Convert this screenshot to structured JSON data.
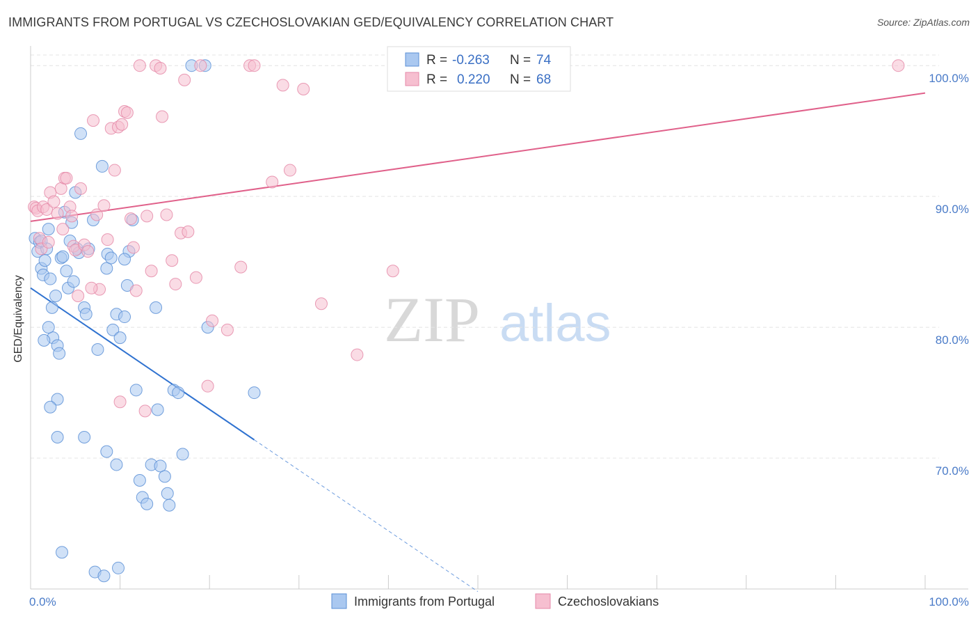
{
  "title": "IMMIGRANTS FROM PORTUGAL VS CZECHOSLOVAKIAN GED/EQUIVALENCY CORRELATION CHART",
  "source": "Source: ZipAtlas.com",
  "watermark": {
    "zip": "ZIP",
    "atlas": "atlas"
  },
  "colors": {
    "blue_fill": "#aac8f0",
    "blue_stroke": "#5b8fd6",
    "blue_line": "#2f72d0",
    "pink_fill": "#f6bfd0",
    "pink_stroke": "#e58aa8",
    "pink_line": "#e0608a",
    "tick_text": "#4a7bc8",
    "grid": "#e4e4e4"
  },
  "stats": {
    "r_label": "R =",
    "n_label": "N =",
    "series": [
      {
        "r": "-0.263",
        "n": "74"
      },
      {
        "r": "0.220",
        "n": "68"
      }
    ]
  },
  "chart_data": {
    "type": "scatter",
    "xlabel": "",
    "ylabel": "GED/Equivalency",
    "xlim": [
      0,
      100
    ],
    "ylim": [
      60,
      101.5
    ],
    "x_tick_labels": [
      "0.0%",
      "100.0%"
    ],
    "y_ticks": [
      {
        "value": 70,
        "label": "70.0%"
      },
      {
        "value": 80,
        "label": "80.0%"
      },
      {
        "value": 90,
        "label": "90.0%"
      },
      {
        "value": 100,
        "label": "100.0%"
      }
    ],
    "legend_position": "bottom-center",
    "series": [
      {
        "name": "Immigrants from Portugal",
        "color": "blue",
        "trend": {
          "x0": 0,
          "y0": 83.0,
          "x1": 25,
          "y1": 71.4,
          "dash_to_x": 50
        },
        "points": [
          [
            0.5,
            86.8
          ],
          [
            0.8,
            85.8
          ],
          [
            1,
            86.5
          ],
          [
            1.2,
            84.5
          ],
          [
            1.4,
            84
          ],
          [
            1.6,
            85.1
          ],
          [
            1.8,
            86
          ],
          [
            2,
            87.5
          ],
          [
            2.2,
            83.7
          ],
          [
            2.4,
            81.5
          ],
          [
            2.5,
            79.2
          ],
          [
            2.8,
            82.4
          ],
          [
            3,
            78.6
          ],
          [
            3.2,
            78
          ],
          [
            3.4,
            85.3
          ],
          [
            3.6,
            85.4
          ],
          [
            3.8,
            88.8
          ],
          [
            4,
            84.3
          ],
          [
            4.2,
            83
          ],
          [
            4.4,
            86.6
          ],
          [
            4.6,
            88
          ],
          [
            4.8,
            83.5
          ],
          [
            5,
            90.3
          ],
          [
            5.2,
            86
          ],
          [
            5.4,
            85.7
          ],
          [
            5.6,
            94.8
          ],
          [
            6,
            81.5
          ],
          [
            6.2,
            81
          ],
          [
            6.5,
            86
          ],
          [
            7,
            88.2
          ],
          [
            7.5,
            78.3
          ],
          [
            8,
            92.3
          ],
          [
            8.5,
            84.5
          ],
          [
            8.6,
            85.6
          ],
          [
            9,
            85.3
          ],
          [
            9.2,
            79.8
          ],
          [
            9.6,
            81
          ],
          [
            10,
            79.2
          ],
          [
            10.5,
            80.8
          ],
          [
            10.8,
            83.2
          ],
          [
            11,
            85.8
          ],
          [
            11.4,
            88.2
          ],
          [
            11.8,
            75.2
          ],
          [
            12.2,
            68.3
          ],
          [
            12.5,
            67
          ],
          [
            13,
            66.5
          ],
          [
            13.5,
            69.5
          ],
          [
            14,
            81.5
          ],
          [
            14.2,
            73.7
          ],
          [
            14.5,
            69.4
          ],
          [
            15,
            68.6
          ],
          [
            15.3,
            67.3
          ],
          [
            15.5,
            66.4
          ],
          [
            16,
            75.2
          ],
          [
            16.5,
            75
          ],
          [
            17,
            70.3
          ],
          [
            18,
            100
          ],
          [
            19.5,
            100
          ],
          [
            19.8,
            80
          ],
          [
            25,
            75
          ],
          [
            3.5,
            62.8
          ],
          [
            7.2,
            61.3
          ],
          [
            8.2,
            61
          ],
          [
            9.8,
            61.6
          ],
          [
            1.2,
            86.6
          ],
          [
            1.5,
            79
          ],
          [
            2,
            80
          ],
          [
            3,
            74.5
          ],
          [
            2.2,
            73.9
          ],
          [
            3,
            71.6
          ],
          [
            6,
            71.6
          ],
          [
            8.5,
            70.5
          ],
          [
            9.6,
            69.5
          ],
          [
            10.5,
            85.2
          ]
        ]
      },
      {
        "name": "Czechoslovakians",
        "color": "pink",
        "trend": {
          "x0": 0,
          "y0": 88.1,
          "x1": 100,
          "y1": 97.9
        },
        "points": [
          [
            0.4,
            89.2
          ],
          [
            0.6,
            89.1
          ],
          [
            0.8,
            88.9
          ],
          [
            1,
            86.8
          ],
          [
            1.2,
            86
          ],
          [
            1.4,
            89.2
          ],
          [
            1.8,
            89
          ],
          [
            2,
            86.5
          ],
          [
            2.2,
            90.3
          ],
          [
            2.6,
            89.6
          ],
          [
            3,
            88.7
          ],
          [
            3.4,
            90.6
          ],
          [
            3.6,
            87.5
          ],
          [
            3.8,
            91.4
          ],
          [
            4,
            91.4
          ],
          [
            4.4,
            89.2
          ],
          [
            4.6,
            88.5
          ],
          [
            4.8,
            86.2
          ],
          [
            5,
            85.9
          ],
          [
            5.3,
            82.4
          ],
          [
            5.6,
            90.6
          ],
          [
            6,
            86.3
          ],
          [
            6.4,
            85.8
          ],
          [
            7,
            95.8
          ],
          [
            7.4,
            88.6
          ],
          [
            7.7,
            82.9
          ],
          [
            8.2,
            89.3
          ],
          [
            8.6,
            86.7
          ],
          [
            9,
            95.2
          ],
          [
            9.4,
            92
          ],
          [
            9.8,
            95.3
          ],
          [
            10.2,
            95.5
          ],
          [
            10.5,
            96.5
          ],
          [
            10.8,
            96.4
          ],
          [
            11.2,
            88.3
          ],
          [
            11.5,
            86.1
          ],
          [
            11.8,
            82.8
          ],
          [
            12.2,
            100
          ],
          [
            13,
            88.5
          ],
          [
            13.5,
            84.3
          ],
          [
            14,
            100
          ],
          [
            14.5,
            99.8
          ],
          [
            14.7,
            96.1
          ],
          [
            15.2,
            88.6
          ],
          [
            15.8,
            85.1
          ],
          [
            16.2,
            83.3
          ],
          [
            16.8,
            87.2
          ],
          [
            17.2,
            98.9
          ],
          [
            17.6,
            87.3
          ],
          [
            18.5,
            83.8
          ],
          [
            19,
            100
          ],
          [
            19.8,
            75.5
          ],
          [
            20.3,
            80.5
          ],
          [
            22,
            79.8
          ],
          [
            23.5,
            84.6
          ],
          [
            24.5,
            100
          ],
          [
            25,
            100
          ],
          [
            27,
            91.1
          ],
          [
            28.2,
            98.5
          ],
          [
            29,
            92
          ],
          [
            30.5,
            98.2
          ],
          [
            32.5,
            81.8
          ],
          [
            36.5,
            77.9
          ],
          [
            40.5,
            84.3
          ],
          [
            97,
            100
          ],
          [
            10,
            74.3
          ],
          [
            12.8,
            73.6
          ],
          [
            6.8,
            83
          ]
        ]
      }
    ]
  }
}
